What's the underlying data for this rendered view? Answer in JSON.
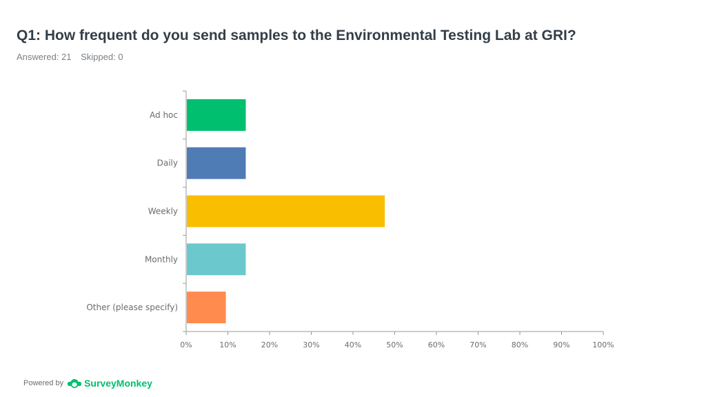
{
  "header": {
    "title": "Q1: How frequent do you send samples to the Environmental Testing Lab at GRI?",
    "answered": "Answered: 21",
    "skipped": "Skipped: 0"
  },
  "footer": {
    "powered_by": "Powered by",
    "brand": "SurveyMonkey",
    "logo_icon": "surveymonkey-logo-icon"
  },
  "chart_data": {
    "type": "bar",
    "orientation": "horizontal",
    "categories": [
      "Ad hoc",
      "Daily",
      "Weekly",
      "Monthly",
      "Other (please specify)"
    ],
    "values": [
      14.29,
      14.29,
      47.62,
      14.29,
      9.52
    ],
    "colors": [
      "#00bf6f",
      "#507cb6",
      "#f9be00",
      "#6bc8cd",
      "#ff8b4f"
    ],
    "xlim": [
      0,
      100
    ],
    "xticks": [
      "0%",
      "10%",
      "20%",
      "30%",
      "40%",
      "50%",
      "60%",
      "70%",
      "80%",
      "90%",
      "100%"
    ],
    "grid": false
  }
}
